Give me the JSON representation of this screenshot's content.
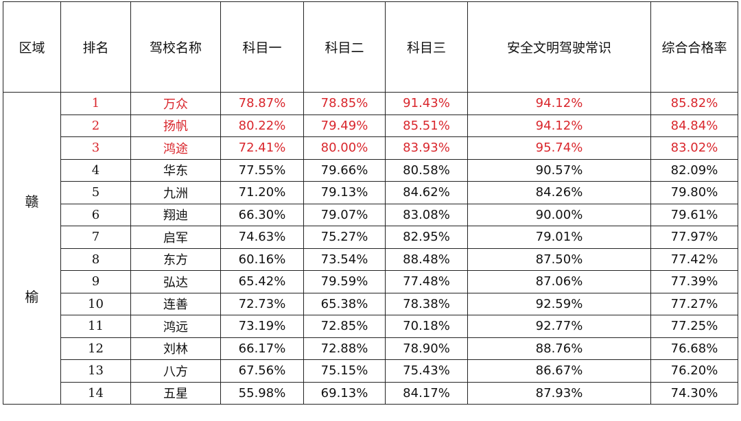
{
  "headers": [
    "区域",
    "排名",
    "驾校名称",
    "科目一",
    "科目二",
    "科目三",
    "安全文明驾驶常识",
    "综合合格率"
  ],
  "region": {
    "char1": "赣",
    "char2": "榆"
  },
  "highlight_color": "#d9262c",
  "rows": [
    {
      "rank": "1",
      "name": "万众",
      "k1": "78.87%",
      "k2": "78.85%",
      "k3": "91.43%",
      "safety": "94.12%",
      "overall": "85.82%",
      "highlight": true
    },
    {
      "rank": "2",
      "name": "扬帆",
      "k1": "80.22%",
      "k2": "79.49%",
      "k3": "85.51%",
      "safety": "94.12%",
      "overall": "84.84%",
      "highlight": true
    },
    {
      "rank": "3",
      "name": "鸿途",
      "k1": "72.41%",
      "k2": "80.00%",
      "k3": "83.93%",
      "safety": "95.74%",
      "overall": "83.02%",
      "highlight": true
    },
    {
      "rank": "4",
      "name": "华东",
      "k1": "77.55%",
      "k2": "79.66%",
      "k3": "80.58%",
      "safety": "90.57%",
      "overall": "82.09%",
      "highlight": false
    },
    {
      "rank": "5",
      "name": "九洲",
      "k1": "71.20%",
      "k2": "79.13%",
      "k3": "84.62%",
      "safety": "84.26%",
      "overall": "79.80%",
      "highlight": false
    },
    {
      "rank": "6",
      "name": "翔迪",
      "k1": "66.30%",
      "k2": "79.07%",
      "k3": "83.08%",
      "safety": "90.00%",
      "overall": "79.61%",
      "highlight": false
    },
    {
      "rank": "7",
      "name": "启军",
      "k1": "74.63%",
      "k2": "75.27%",
      "k3": "82.95%",
      "safety": "79.01%",
      "overall": "77.97%",
      "highlight": false
    },
    {
      "rank": "8",
      "name": "东方",
      "k1": "60.16%",
      "k2": "73.54%",
      "k3": "88.48%",
      "safety": "87.50%",
      "overall": "77.42%",
      "highlight": false
    },
    {
      "rank": "9",
      "name": "弘达",
      "k1": "65.42%",
      "k2": "79.59%",
      "k3": "77.48%",
      "safety": "87.06%",
      "overall": "77.39%",
      "highlight": false
    },
    {
      "rank": "10",
      "name": "连善",
      "k1": "72.73%",
      "k2": "65.38%",
      "k3": "78.38%",
      "safety": "92.59%",
      "overall": "77.27%",
      "highlight": false
    },
    {
      "rank": "11",
      "name": "鸿远",
      "k1": "73.19%",
      "k2": "72.85%",
      "k3": "70.18%",
      "safety": "92.77%",
      "overall": "77.25%",
      "highlight": false
    },
    {
      "rank": "12",
      "name": "刘林",
      "k1": "66.17%",
      "k2": "72.88%",
      "k3": "78.90%",
      "safety": "88.76%",
      "overall": "76.68%",
      "highlight": false
    },
    {
      "rank": "13",
      "name": "八方",
      "k1": "67.56%",
      "k2": "75.15%",
      "k3": "75.43%",
      "safety": "86.67%",
      "overall": "76.20%",
      "highlight": false
    },
    {
      "rank": "14",
      "name": "五星",
      "k1": "55.98%",
      "k2": "69.13%",
      "k3": "84.17%",
      "safety": "87.93%",
      "overall": "74.30%",
      "highlight": false
    }
  ]
}
